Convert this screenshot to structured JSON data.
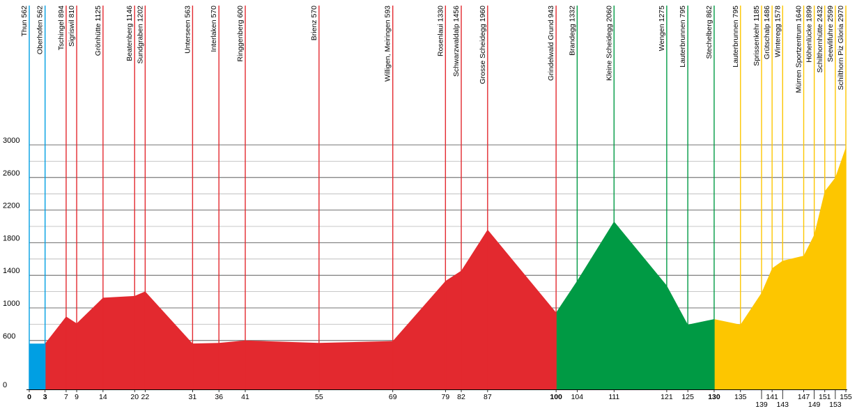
{
  "chart_data": {
    "type": "area",
    "title": "",
    "xlabel": "",
    "ylabel": "",
    "xlim": [
      0,
      155
    ],
    "ylim": [
      0,
      3000
    ],
    "y_ticks": [
      0,
      600,
      1000,
      1400,
      1800,
      2200,
      2600,
      3000
    ],
    "x_ticks": [
      {
        "label": "0",
        "value": 0,
        "bold": true,
        "row": 1
      },
      {
        "label": "3",
        "value": 3,
        "bold": true,
        "row": 1
      },
      {
        "label": "7",
        "value": 7,
        "row": 1
      },
      {
        "label": "9",
        "value": 9,
        "row": 1
      },
      {
        "label": "14",
        "value": 14,
        "row": 1
      },
      {
        "label": "20",
        "value": 20,
        "row": 1
      },
      {
        "label": "22",
        "value": 22,
        "row": 1
      },
      {
        "label": "31",
        "value": 31,
        "row": 1
      },
      {
        "label": "36",
        "value": 36,
        "row": 1
      },
      {
        "label": "41",
        "value": 41,
        "row": 1
      },
      {
        "label": "55",
        "value": 55,
        "row": 1
      },
      {
        "label": "69",
        "value": 69,
        "row": 1
      },
      {
        "label": "79",
        "value": 79,
        "row": 1
      },
      {
        "label": "82",
        "value": 82,
        "row": 1
      },
      {
        "label": "87",
        "value": 87,
        "row": 1
      },
      {
        "label": "100",
        "value": 100,
        "bold": true,
        "row": 1
      },
      {
        "label": "104",
        "value": 104,
        "row": 1
      },
      {
        "label": "111",
        "value": 111,
        "row": 1
      },
      {
        "label": "121",
        "value": 121,
        "row": 1
      },
      {
        "label": "125",
        "value": 125,
        "row": 1
      },
      {
        "label": "130",
        "value": 130,
        "bold": true,
        "row": 1
      },
      {
        "label": "135",
        "value": 135,
        "row": 1
      },
      {
        "label": "139",
        "value": 139,
        "row": 2
      },
      {
        "label": "141",
        "value": 141,
        "row": 1
      },
      {
        "label": "143",
        "value": 143,
        "row": 2
      },
      {
        "label": "147",
        "value": 147,
        "row": 1
      },
      {
        "label": "149",
        "value": 149,
        "row": 2
      },
      {
        "label": "151",
        "value": 151,
        "row": 1
      },
      {
        "label": "153",
        "value": 153,
        "row": 2
      },
      {
        "label": "155",
        "value": 155,
        "row": 1
      }
    ],
    "series": [
      {
        "color": "#009fe3",
        "points": [
          {
            "x": 0,
            "y": 562
          },
          {
            "x": 3,
            "y": 562
          }
        ]
      },
      {
        "color": "#e3292f",
        "points": [
          {
            "x": 3,
            "y": 562
          },
          {
            "x": 7,
            "y": 894
          },
          {
            "x": 9,
            "y": 810
          },
          {
            "x": 14,
            "y": 1125
          },
          {
            "x": 20,
            "y": 1146
          },
          {
            "x": 22,
            "y": 1202
          },
          {
            "x": 31,
            "y": 563
          },
          {
            "x": 36,
            "y": 570
          },
          {
            "x": 41,
            "y": 600
          },
          {
            "x": 55,
            "y": 570
          },
          {
            "x": 69,
            "y": 593
          },
          {
            "x": 79,
            "y": 1330
          },
          {
            "x": 82,
            "y": 1456
          },
          {
            "x": 87,
            "y": 1960
          },
          {
            "x": 100,
            "y": 943
          }
        ]
      },
      {
        "color": "#009a44",
        "points": [
          {
            "x": 100,
            "y": 943
          },
          {
            "x": 104,
            "y": 1332
          },
          {
            "x": 111,
            "y": 2060
          },
          {
            "x": 121,
            "y": 1275
          },
          {
            "x": 125,
            "y": 795
          },
          {
            "x": 130,
            "y": 862
          }
        ]
      },
      {
        "color": "#fdc600",
        "points": [
          {
            "x": 130,
            "y": 862
          },
          {
            "x": 135,
            "y": 795
          },
          {
            "x": 139,
            "y": 1185
          },
          {
            "x": 141,
            "y": 1486
          },
          {
            "x": 143,
            "y": 1578
          },
          {
            "x": 147,
            "y": 1640
          },
          {
            "x": 149,
            "y": 1899
          },
          {
            "x": 151,
            "y": 2432
          },
          {
            "x": 153,
            "y": 2599
          },
          {
            "x": 155,
            "y": 2970
          }
        ]
      }
    ],
    "stations": [
      {
        "name": "Thun",
        "elev": "562",
        "km": 0,
        "color": "#009fe3"
      },
      {
        "name": "Oberhofen",
        "elev": "562",
        "km": 3,
        "color": "#009fe3"
      },
      {
        "name": "Tschingel",
        "elev": "894",
        "km": 7,
        "color": "#e3292f"
      },
      {
        "name": "Sigriswil",
        "elev": "810",
        "km": 9,
        "color": "#e3292f"
      },
      {
        "name": "Grönhütte",
        "elev": "1125",
        "km": 14,
        "color": "#e3292f"
      },
      {
        "name": "Beatenberg",
        "elev": "1146",
        "km": 20,
        "color": "#e3292f"
      },
      {
        "name": "Sundgraben",
        "elev": "1202",
        "km": 22,
        "color": "#e3292f"
      },
      {
        "name": "Unterseen",
        "elev": "563",
        "km": 31,
        "color": "#e3292f"
      },
      {
        "name": "Interlaken",
        "elev": "570",
        "km": 36,
        "color": "#e3292f"
      },
      {
        "name": "Ringgenberg",
        "elev": "600",
        "km": 41,
        "color": "#e3292f"
      },
      {
        "name": "Brienz",
        "elev": "570",
        "km": 55,
        "color": "#e3292f"
      },
      {
        "name": "Willigen, Meiringen",
        "elev": "593",
        "km": 69,
        "color": "#e3292f"
      },
      {
        "name": "Rosenlaui",
        "elev": "1330",
        "km": 79,
        "color": "#e3292f"
      },
      {
        "name": "Schwarzwaldalp",
        "elev": "1456",
        "km": 82,
        "color": "#e3292f"
      },
      {
        "name": "Grosse Scheidegg",
        "elev": "1960",
        "km": 87,
        "color": "#e3292f"
      },
      {
        "name": "Grindelwald Grund",
        "elev": "943",
        "km": 100,
        "color": "#e3292f"
      },
      {
        "name": "Brandegg",
        "elev": "1332",
        "km": 104,
        "color": "#009a44"
      },
      {
        "name": "Kleine Scheidegg",
        "elev": "2060",
        "km": 111,
        "color": "#009a44"
      },
      {
        "name": "Wengen",
        "elev": "1275",
        "km": 121,
        "color": "#009a44"
      },
      {
        "name": "Lauterbrunnen",
        "elev": "795",
        "km": 125,
        "color": "#009a44"
      },
      {
        "name": "Stechelberg",
        "elev": "862",
        "km": 130,
        "color": "#009a44"
      },
      {
        "name": "Lauterbrunnen",
        "elev": "795",
        "km": 135,
        "color": "#fdc600"
      },
      {
        "name": "Sprissenkehr",
        "elev": "1185",
        "km": 139,
        "color": "#fdc600"
      },
      {
        "name": "Grütschalp",
        "elev": "1486",
        "km": 141,
        "color": "#fdc600"
      },
      {
        "name": "Winteregg",
        "elev": "1578",
        "km": 143,
        "color": "#fdc600"
      },
      {
        "name": "Mürren Sportzentrum",
        "elev": "1640",
        "km": 147,
        "color": "#fdc600"
      },
      {
        "name": "Höhenlücke",
        "elev": "1899",
        "km": 149,
        "color": "#fdc600"
      },
      {
        "name": "Schilthornhütte",
        "elev": "2432",
        "km": 151,
        "color": "#fdc600"
      },
      {
        "name": "Seewlifuhre",
        "elev": "2599",
        "km": 153,
        "color": "#fdc600"
      },
      {
        "name": "Schilthorn Piz Gloria",
        "elev": "2970",
        "km": 155,
        "color": "#fdc600"
      }
    ]
  }
}
